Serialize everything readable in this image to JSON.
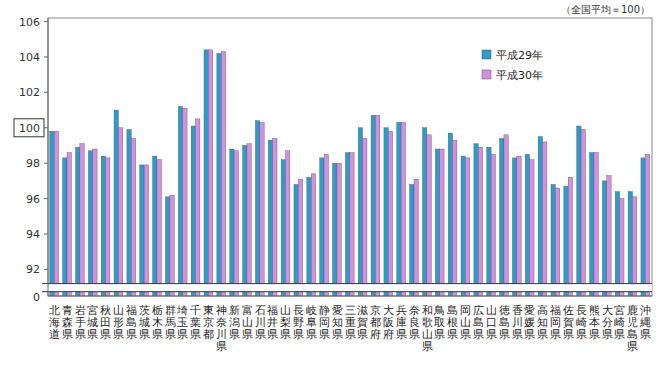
{
  "chart_data": {
    "type": "bar",
    "subtitle": "（全国平均＝100）",
    "annotations": [
      "0"
    ],
    "categories": [
      "北海道",
      "青森県",
      "岩手県",
      "宮城県",
      "秋田県",
      "山形県",
      "福島県",
      "茨城県",
      "栃木県",
      "群馬県",
      "埼玉県",
      "千葉県",
      "東京都",
      "神奈川県",
      "新潟県",
      "富山県",
      "石川県",
      "福井県",
      "山梨県",
      "長野県",
      "岐阜県",
      "静岡県",
      "愛知県",
      "三重県",
      "滋賀県",
      "京都府",
      "大阪府",
      "兵庫県",
      "奈良県",
      "和歌山県",
      "鳥取県",
      "島根県",
      "岡山県",
      "広島県",
      "山口県",
      "徳島県",
      "香川県",
      "愛媛県",
      "高知県",
      "福岡県",
      "佐賀県",
      "長崎県",
      "熊本県",
      "大分県",
      "宮崎県",
      "鹿児島県",
      "沖縄県"
    ],
    "series": [
      {
        "name": "平成29年",
        "color": "#2e9ccb",
        "values": [
          99.8,
          98.3,
          98.9,
          98.7,
          98.4,
          101.0,
          99.9,
          97.9,
          98.4,
          96.1,
          101.2,
          100.1,
          104.4,
          104.2,
          98.8,
          99.0,
          100.4,
          99.3,
          98.2,
          96.8,
          97.2,
          98.3,
          98.0,
          98.6,
          100.0,
          100.7,
          100.0,
          100.3,
          96.8,
          100.0,
          98.8,
          99.7,
          98.4,
          99.1,
          98.9,
          99.4,
          98.3,
          98.5,
          99.5,
          96.8,
          96.7,
          100.1,
          98.6,
          97.0,
          96.4,
          96.4,
          98.3
        ]
      },
      {
        "name": "平成30年",
        "color": "#d48fe0",
        "values": [
          99.8,
          98.6,
          99.1,
          98.8,
          98.3,
          100.0,
          99.4,
          97.9,
          98.2,
          96.2,
          101.1,
          100.5,
          104.4,
          104.3,
          98.7,
          99.1,
          100.3,
          99.4,
          98.7,
          97.1,
          97.4,
          98.5,
          98.0,
          98.6,
          99.4,
          100.7,
          99.8,
          100.3,
          97.1,
          99.6,
          98.8,
          99.3,
          98.3,
          98.9,
          98.5,
          99.6,
          98.4,
          98.2,
          99.2,
          96.6,
          97.2,
          99.9,
          98.6,
          97.3,
          96.0,
          96.1,
          98.5
        ]
      }
    ],
    "ylim": [
      90.5,
      106.2
    ],
    "yticks": [
      92,
      94,
      96,
      98,
      100,
      102,
      104,
      106
    ],
    "grid": false,
    "legend": "upper right"
  }
}
